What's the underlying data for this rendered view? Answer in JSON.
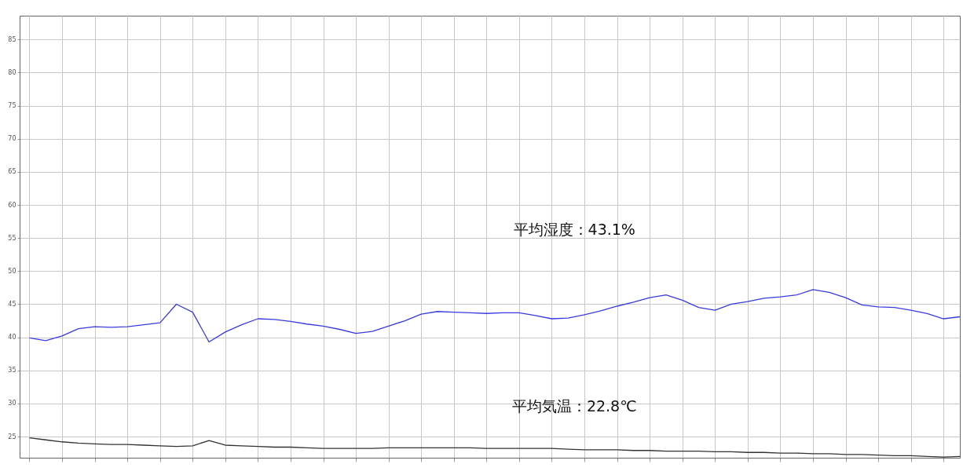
{
  "chart_data": {
    "type": "line",
    "annotations": [
      "平均湿度：43.1%",
      "平均気温：22.8℃"
    ],
    "categories": [
      null,
      null,
      null,
      null,
      null,
      null,
      null,
      null,
      null,
      null,
      null,
      null,
      null,
      null,
      null,
      null,
      null,
      null,
      null,
      null,
      null,
      null,
      null,
      null,
      null,
      null,
      null,
      null,
      null,
      null,
      null,
      null,
      null,
      null,
      null,
      null,
      null,
      null,
      null,
      null,
      null,
      null,
      null,
      null,
      null,
      null,
      null,
      null,
      null,
      null,
      null,
      null,
      null,
      null,
      null,
      null,
      null,
      null
    ],
    "series": [
      {
        "color": "#3a3ae0",
        "values": [
          39.9,
          39.5,
          40.2,
          41.3,
          41.6,
          41.5,
          41.6,
          41.9,
          42.2,
          45.0,
          43.8,
          39.3,
          40.8,
          41.9,
          42.8,
          42.7,
          42.4,
          42.0,
          41.7,
          41.2,
          40.6,
          40.9,
          41.7,
          42.5,
          43.5,
          43.9,
          43.8,
          43.7,
          43.6,
          43.7,
          43.7,
          43.3,
          42.8,
          42.9,
          43.4,
          44.0,
          44.7,
          45.3,
          46.0,
          46.4,
          45.6,
          44.5,
          44.1,
          45.0,
          45.4,
          45.9,
          46.1,
          46.4,
          47.2,
          46.8,
          46.0,
          44.9,
          44.6,
          44.5,
          44.1,
          43.6,
          42.8,
          43.1
        ]
      },
      {
        "color": "#333333",
        "values": [
          24.8,
          24.5,
          24.2,
          24.0,
          23.9,
          23.8,
          23.8,
          23.7,
          23.6,
          23.5,
          23.6,
          24.4,
          23.7,
          23.6,
          23.5,
          23.4,
          23.4,
          23.3,
          23.2,
          23.2,
          23.2,
          23.2,
          23.3,
          23.3,
          23.3,
          23.3,
          23.3,
          23.3,
          23.2,
          23.2,
          23.2,
          23.2,
          23.2,
          23.1,
          23.0,
          23.0,
          23.0,
          22.9,
          22.9,
          22.8,
          22.8,
          22.8,
          22.7,
          22.7,
          22.6,
          22.6,
          22.5,
          22.5,
          22.4,
          22.4,
          22.3,
          22.3,
          22.2,
          22.1,
          22.1,
          22.0,
          21.9,
          22.0
        ]
      }
    ],
    "ylim": [
      21.8,
      88.6
    ],
    "yticks": [
      25,
      30,
      35,
      40,
      45,
      50,
      55,
      60,
      65,
      70,
      75,
      80,
      85
    ],
    "grid": true,
    "tick_labels": "y"
  }
}
